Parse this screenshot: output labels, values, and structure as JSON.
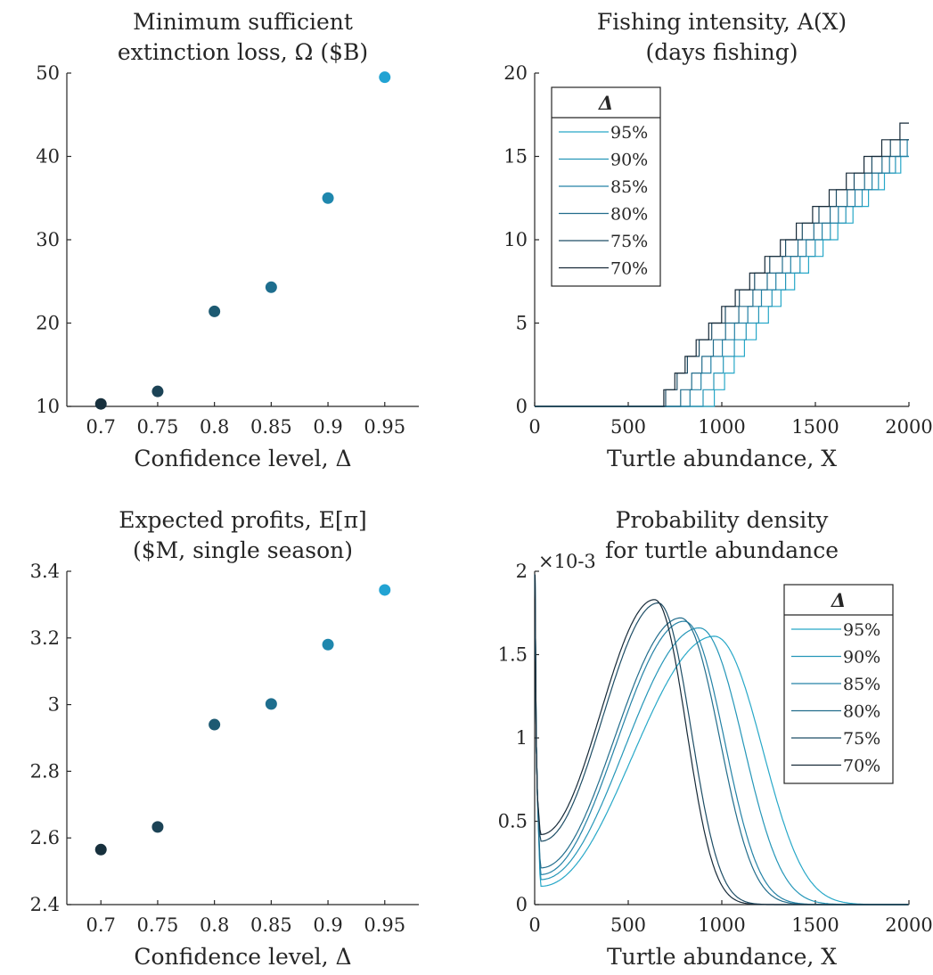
{
  "chart_data": [
    {
      "type": "scatter",
      "title": [
        "Minimum sufficient",
        "extinction loss, Ω ($B)"
      ],
      "xlabel": "Confidence level, Δ",
      "ylabel": "",
      "xlim": [
        0.67,
        0.98
      ],
      "ylim": [
        10,
        50
      ],
      "xticks": [
        "0.7",
        "0.75",
        "0.8",
        "0.85",
        "0.9",
        "0.95"
      ],
      "yticks": [
        "10",
        "20",
        "30",
        "40",
        "50"
      ],
      "x": [
        0.7,
        0.75,
        0.8,
        0.85,
        0.9,
        0.95
      ],
      "y": [
        10.3,
        11.8,
        21.4,
        24.3,
        35.0,
        49.5
      ],
      "colors": [
        "#17303d",
        "#1c4356",
        "#1d5a72",
        "#1e6e8e",
        "#1f87ad",
        "#22a3d3"
      ]
    },
    {
      "type": "line",
      "title": [
        "Fishing intensity, A(X)",
        "(days fishing)"
      ],
      "xlabel": "Turtle abundance, X",
      "ylabel": "",
      "xlim": [
        0,
        2000
      ],
      "ylim": [
        0,
        20
      ],
      "xticks": [
        "0",
        "500",
        "1000",
        "1500",
        "2000"
      ],
      "yticks": [
        "0",
        "5",
        "10",
        "15",
        "20"
      ],
      "legend": {
        "title": "Δ",
        "placement": "top-left"
      },
      "series": [
        {
          "name": "95%",
          "x0": 960,
          "x_end": 2000,
          "y_end": 15,
          "color": "#28a8c8"
        },
        {
          "name": "90%",
          "x0": 900,
          "x_end": 2000,
          "y_end": 15.3,
          "color": "#2596b8"
        },
        {
          "name": "85%",
          "x0": 830,
          "x_end": 2000,
          "y_end": 15.6,
          "color": "#2482a6"
        },
        {
          "name": "80%",
          "x0": 780,
          "x_end": 2000,
          "y_end": 16,
          "color": "#226d8c"
        },
        {
          "name": "75%",
          "x0": 700,
          "x_end": 2000,
          "y_end": 16.5,
          "color": "#1e4e66"
        },
        {
          "name": "70%",
          "x0": 690,
          "x_end": 2000,
          "y_end": 17,
          "color": "#172a38"
        }
      ]
    },
    {
      "type": "scatter",
      "title": [
        "Expected profits, E[π]",
        "($M, single season)"
      ],
      "xlabel": "Confidence level, Δ",
      "ylabel": "",
      "xlim": [
        0.67,
        0.98
      ],
      "ylim": [
        2.4,
        3.4
      ],
      "xticks": [
        "0.7",
        "0.75",
        "0.8",
        "0.85",
        "0.9",
        "0.95"
      ],
      "yticks": [
        "2.4",
        "2.6",
        "2.8",
        "3",
        "3.2",
        "3.4"
      ],
      "x": [
        0.7,
        0.75,
        0.8,
        0.85,
        0.9,
        0.95
      ],
      "y": [
        2.565,
        2.633,
        2.94,
        3.002,
        3.18,
        3.344
      ],
      "colors": [
        "#17303d",
        "#1c4356",
        "#1d5a72",
        "#1e6e8e",
        "#1f87ad",
        "#22a3d3"
      ]
    },
    {
      "type": "line",
      "title": [
        "Probability density",
        "for turtle abundance"
      ],
      "xlabel": "Turtle abundance, X",
      "ylabel": "",
      "axis_multiplier": "×10-3",
      "xlim": [
        0,
        2000
      ],
      "ylim": [
        0,
        2
      ],
      "xticks": [
        "0",
        "500",
        "1000",
        "1500",
        "2000"
      ],
      "yticks": [
        "0",
        "0.5",
        "1",
        "1.5",
        "2"
      ],
      "legend": {
        "title": "Δ",
        "placement": "top-right"
      },
      "series": [
        {
          "name": "95%",
          "peak_x": 960,
          "peak_y": 1.61,
          "min_y": 0.11,
          "color": "#28a8c8"
        },
        {
          "name": "90%",
          "peak_x": 880,
          "peak_y": 1.66,
          "min_y": 0.15,
          "color": "#2596b8"
        },
        {
          "name": "85%",
          "peak_x": 800,
          "peak_y": 1.7,
          "min_y": 0.18,
          "color": "#2482a6"
        },
        {
          "name": "80%",
          "peak_x": 780,
          "peak_y": 1.72,
          "min_y": 0.22,
          "color": "#226d8c"
        },
        {
          "name": "75%",
          "peak_x": 660,
          "peak_y": 1.81,
          "min_y": 0.38,
          "color": "#1e4e66"
        },
        {
          "name": "70%",
          "peak_x": 640,
          "peak_y": 1.83,
          "min_y": 0.42,
          "color": "#172a38"
        }
      ]
    }
  ]
}
